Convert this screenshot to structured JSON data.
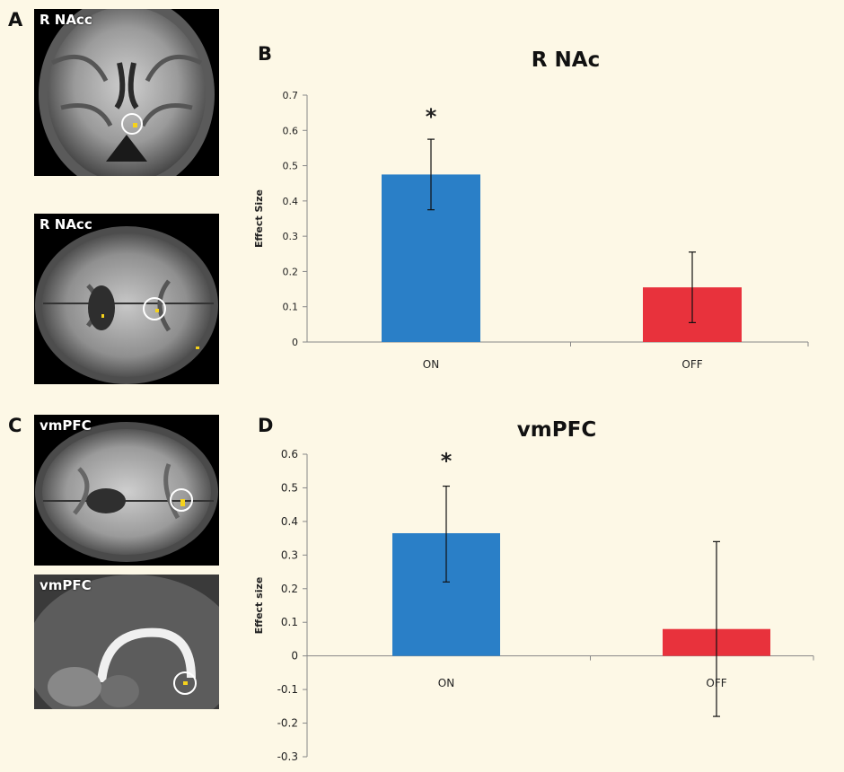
{
  "panels": {
    "a": "A",
    "b": "B",
    "c": "C",
    "d": "D"
  },
  "scans": {
    "top_coronal_label": "R NAcc",
    "top_axial_label": "R NAcc",
    "bottom_axial_label": "vmPFC",
    "bottom_sagittal_label": "vmPFC"
  },
  "colors": {
    "on": "#2a7fc7",
    "off": "#e8323c",
    "highlight": "#f5d21c"
  },
  "chart_data": [
    {
      "type": "bar",
      "title": "R NAc",
      "ylabel": "Effect Size",
      "xlabel": "",
      "categories": [
        "ON",
        "OFF"
      ],
      "values": [
        0.475,
        0.155
      ],
      "error_bars": [
        [
          0.375,
          0.575
        ],
        [
          0.055,
          0.255
        ]
      ],
      "bar_colors": [
        "#2a7fc7",
        "#e8323c"
      ],
      "ylim": [
        0,
        0.7
      ],
      "yticks": [
        "0",
        "0.1",
        "0.2",
        "0.3",
        "0.4",
        "0.5",
        "0.6",
        "0.7"
      ],
      "significance": [
        "*",
        ""
      ],
      "grid": false
    },
    {
      "type": "bar",
      "title": "vmPFC",
      "ylabel": "Effect size",
      "xlabel": "",
      "categories": [
        "ON",
        "OFF"
      ],
      "values": [
        0.365,
        0.08
      ],
      "error_bars": [
        [
          0.22,
          0.505
        ],
        [
          -0.18,
          0.34
        ]
      ],
      "bar_colors": [
        "#2a7fc7",
        "#e8323c"
      ],
      "ylim": [
        -0.3,
        0.6
      ],
      "yticks": [
        "-0.3",
        "-0.2",
        "-0.1",
        "0",
        "0.1",
        "0.2",
        "0.3",
        "0.4",
        "0.5",
        "0.6"
      ],
      "significance": [
        "*",
        ""
      ],
      "grid": false
    }
  ]
}
